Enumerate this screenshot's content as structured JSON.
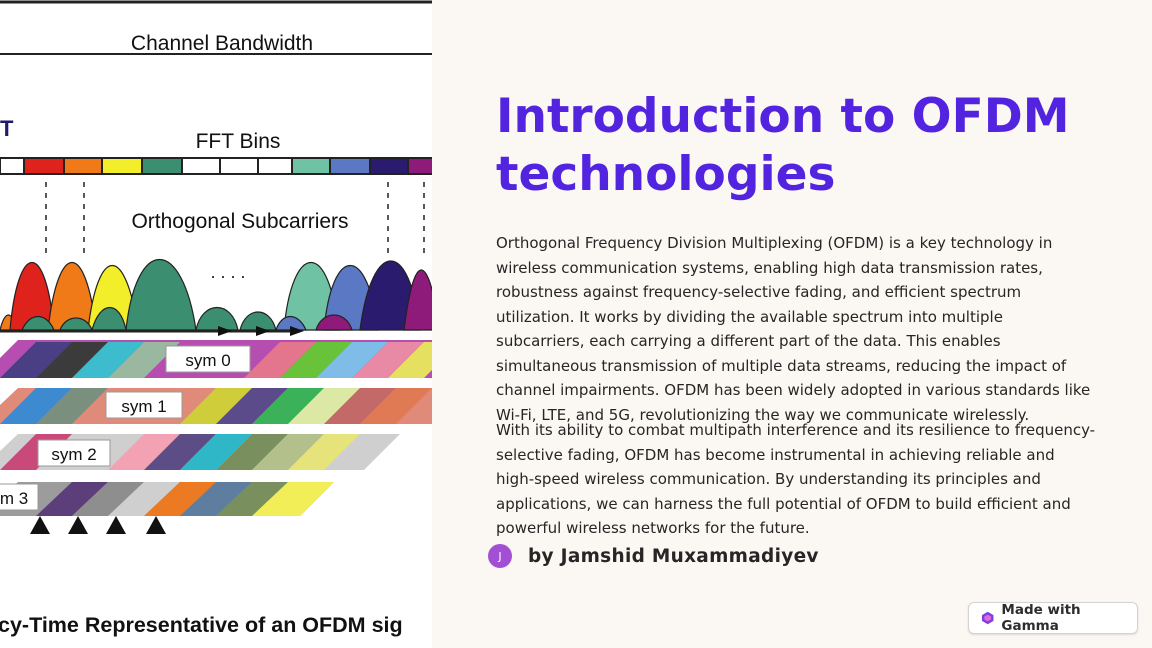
{
  "figure": {
    "labels": {
      "bandwidth": "Channel Bandwidth",
      "fft": "FFT Bins",
      "subcarriers": "Orthogonal Subcarriers",
      "t_letter": "T",
      "dots": ". . . .",
      "sym0": "sym 0",
      "sym1": "sym 1",
      "sym2": "sym 2",
      "sym3": "m 3",
      "caption": "cy-Time Representative of an OFDM sig"
    }
  },
  "slide": {
    "title": "Introduction to OFDM technologies",
    "para1": "Orthogonal Frequency Division Multiplexing (OFDM) is a key technology in wireless communication systems, enabling high data transmission rates, robustness against frequency-selective fading, and efficient spectrum utilization. It works by dividing the available spectrum into multiple subcarriers, each carrying a different part of the data. This enables simultaneous transmission of multiple data streams, reducing the impact of channel impairments. OFDM has been widely adopted in various standards like Wi-Fi, LTE, and 5G, revolutionizing the way we communicate wirelessly.",
    "para2": "With its ability to combat multipath interference and its resilience to frequency-selective fading, OFDM has become instrumental in achieving reliable and high-speed wireless communication. By understanding its principles and applications, we can harness the full potential of OFDM to build efficient and powerful wireless networks for the future.",
    "author": {
      "initial": "J",
      "name": "by Jamshid Muxammadiyev"
    }
  },
  "badge": {
    "label": "Made with Gamma",
    "icon": "gamma-logo-icon"
  },
  "colors": {
    "title": "#5324e0",
    "avatar": "#a24fd6",
    "background": "#fbf7f3"
  }
}
